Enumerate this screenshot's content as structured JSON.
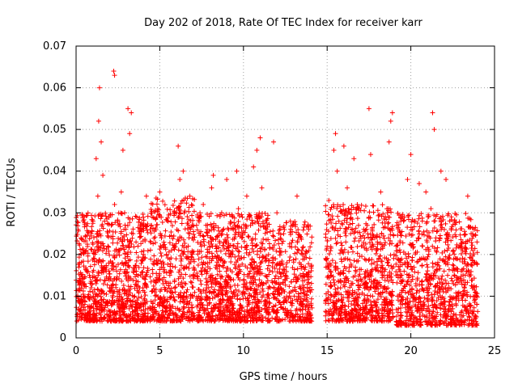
{
  "chart_data": {
    "type": "scatter",
    "title": "Day 202 of 2018, Rate Of TEC Index for receiver karr",
    "xlabel": "GPS time / hours",
    "ylabel": "ROTI / TECUs",
    "xlim": [
      0,
      25
    ],
    "ylim": [
      0,
      0.07
    ],
    "xticks": [
      0,
      5,
      10,
      15,
      20,
      25
    ],
    "xtick_labels": [
      "0",
      "5",
      "10",
      "15",
      "20",
      "25"
    ],
    "yticks": [
      0,
      0.01,
      0.02,
      0.03,
      0.04,
      0.05,
      0.06,
      0.07
    ],
    "ytick_labels": [
      "0",
      "0.01",
      "0.02",
      "0.03",
      "0.04",
      "0.05",
      "0.06",
      "0.07"
    ],
    "grid": true,
    "marker": "+",
    "color": "#ff0000",
    "series": [
      {
        "name": "ROTI",
        "points": [
          [
            0.1,
            0.01
          ],
          [
            0.2,
            0.018
          ],
          [
            0.3,
            0.024
          ],
          [
            0.4,
            0.008
          ],
          [
            0.5,
            0.013
          ],
          [
            0.6,
            0.021
          ],
          [
            0.7,
            0.006
          ],
          [
            0.8,
            0.015
          ],
          [
            0.9,
            0.025
          ],
          [
            1.0,
            0.011
          ],
          [
            1.1,
            0.019
          ],
          [
            1.2,
            0.043
          ],
          [
            1.3,
            0.034
          ],
          [
            1.35,
            0.052
          ],
          [
            1.4,
            0.06
          ],
          [
            1.5,
            0.047
          ],
          [
            1.6,
            0.039
          ],
          [
            1.7,
            0.028
          ],
          [
            1.8,
            0.016
          ],
          [
            1.9,
            0.022
          ],
          [
            2.0,
            0.012
          ],
          [
            2.1,
            0.027
          ],
          [
            2.2,
            0.018
          ],
          [
            2.3,
            0.032
          ],
          [
            2.25,
            0.064
          ],
          [
            2.3,
            0.063
          ],
          [
            2.4,
            0.014
          ],
          [
            2.5,
            0.009
          ],
          [
            2.6,
            0.021
          ],
          [
            2.7,
            0.035
          ],
          [
            2.8,
            0.045
          ],
          [
            2.9,
            0.03
          ],
          [
            3.0,
            0.018
          ],
          [
            3.1,
            0.055
          ],
          [
            3.2,
            0.049
          ],
          [
            3.3,
            0.054
          ],
          [
            3.4,
            0.025
          ],
          [
            3.5,
            0.01
          ],
          [
            3.6,
            0.016
          ],
          [
            3.7,
            0.022
          ],
          [
            3.8,
            0.012
          ],
          [
            3.9,
            0.008
          ],
          [
            4.0,
            0.019
          ],
          [
            4.2,
            0.034
          ],
          [
            4.5,
            0.027
          ],
          [
            4.7,
            0.011
          ],
          [
            4.8,
            0.018
          ],
          [
            5.0,
            0.035
          ],
          [
            5.1,
            0.024
          ],
          [
            5.2,
            0.013
          ],
          [
            5.3,
            0.009
          ],
          [
            5.4,
            0.02
          ],
          [
            5.5,
            0.028
          ],
          [
            5.6,
            0.015
          ],
          [
            5.7,
            0.021
          ],
          [
            5.8,
            0.006
          ],
          [
            5.9,
            0.012
          ],
          [
            6.0,
            0.03
          ],
          [
            6.1,
            0.046
          ],
          [
            6.2,
            0.038
          ],
          [
            6.3,
            0.024
          ],
          [
            6.4,
            0.04
          ],
          [
            6.5,
            0.017
          ],
          [
            6.6,
            0.011
          ],
          [
            6.7,
            0.022
          ],
          [
            6.8,
            0.034
          ],
          [
            7.0,
            0.015
          ],
          [
            7.2,
            0.027
          ],
          [
            7.4,
            0.009
          ],
          [
            7.5,
            0.018
          ],
          [
            7.6,
            0.032
          ],
          [
            7.8,
            0.012
          ],
          [
            8.0,
            0.022
          ],
          [
            8.1,
            0.036
          ],
          [
            8.2,
            0.039
          ],
          [
            8.3,
            0.014
          ],
          [
            8.5,
            0.01
          ],
          [
            8.6,
            0.025
          ],
          [
            8.7,
            0.03
          ],
          [
            8.8,
            0.017
          ],
          [
            9.0,
            0.038
          ],
          [
            9.1,
            0.021
          ],
          [
            9.2,
            0.012
          ],
          [
            9.3,
            0.008
          ],
          [
            9.5,
            0.026
          ],
          [
            9.6,
            0.04
          ],
          [
            9.7,
            0.031
          ],
          [
            9.8,
            0.019
          ],
          [
            9.9,
            0.024
          ],
          [
            10.0,
            0.011
          ],
          [
            10.2,
            0.034
          ],
          [
            10.4,
            0.016
          ],
          [
            10.6,
            0.041
          ],
          [
            10.7,
            0.022
          ],
          [
            10.8,
            0.045
          ],
          [
            10.9,
            0.029
          ],
          [
            11.0,
            0.048
          ],
          [
            11.1,
            0.036
          ],
          [
            11.2,
            0.013
          ],
          [
            11.3,
            0.009
          ],
          [
            11.5,
            0.02
          ],
          [
            11.8,
            0.047
          ],
          [
            12.0,
            0.03
          ],
          [
            12.2,
            0.012
          ],
          [
            12.4,
            0.025
          ],
          [
            12.6,
            0.018
          ],
          [
            12.8,
            0.028
          ],
          [
            13.0,
            0.014
          ],
          [
            13.2,
            0.034
          ],
          [
            13.3,
            0.021
          ],
          [
            13.5,
            0.008
          ],
          [
            13.7,
            0.017
          ],
          [
            13.9,
            0.026
          ],
          [
            14.0,
            0.011
          ],
          [
            15.0,
            0.022
          ],
          [
            15.1,
            0.033
          ],
          [
            15.2,
            0.016
          ],
          [
            15.4,
            0.045
          ],
          [
            15.5,
            0.049
          ],
          [
            15.6,
            0.04
          ],
          [
            15.7,
            0.028
          ],
          [
            15.8,
            0.012
          ],
          [
            16.0,
            0.046
          ],
          [
            16.1,
            0.019
          ],
          [
            16.2,
            0.036
          ],
          [
            16.4,
            0.025
          ],
          [
            16.6,
            0.043
          ],
          [
            16.8,
            0.032
          ],
          [
            17.0,
            0.014
          ],
          [
            17.2,
            0.009
          ],
          [
            17.4,
            0.027
          ],
          [
            17.5,
            0.055
          ],
          [
            17.6,
            0.044
          ],
          [
            17.8,
            0.018
          ],
          [
            18.0,
            0.023
          ],
          [
            18.2,
            0.035
          ],
          [
            18.4,
            0.012
          ],
          [
            18.6,
            0.03
          ],
          [
            18.7,
            0.047
          ],
          [
            18.8,
            0.052
          ],
          [
            18.9,
            0.054
          ],
          [
            19.0,
            0.02
          ],
          [
            19.2,
            0.01
          ],
          [
            19.4,
            0.028
          ],
          [
            19.6,
            0.016
          ],
          [
            19.8,
            0.038
          ],
          [
            20.0,
            0.044
          ],
          [
            20.1,
            0.026
          ],
          [
            20.3,
            0.013
          ],
          [
            20.5,
            0.037
          ],
          [
            20.7,
            0.022
          ],
          [
            20.9,
            0.035
          ],
          [
            21.0,
            0.017
          ],
          [
            21.2,
            0.031
          ],
          [
            21.3,
            0.054
          ],
          [
            21.4,
            0.05
          ],
          [
            21.5,
            0.024
          ],
          [
            21.6,
            0.011
          ],
          [
            21.8,
            0.04
          ],
          [
            22.0,
            0.026
          ],
          [
            22.1,
            0.038
          ],
          [
            22.3,
            0.019
          ],
          [
            22.5,
            0.007
          ],
          [
            22.6,
            0.028
          ],
          [
            22.8,
            0.016
          ],
          [
            23.0,
            0.022
          ],
          [
            23.2,
            0.012
          ],
          [
            23.4,
            0.034
          ],
          [
            23.6,
            0.025
          ],
          [
            23.8,
            0.009
          ],
          [
            23.9,
            0.018
          ]
        ]
      }
    ],
    "density_model": {
      "note": "dense bulk of points between the visible traces (data-space bands)",
      "bands": [
        {
          "x": [
            0.0,
            4.3
          ],
          "y": [
            0.004,
            0.03
          ],
          "count": 900
        },
        {
          "x": [
            4.4,
            7.1
          ],
          "y": [
            0.004,
            0.034
          ],
          "count": 500
        },
        {
          "x": [
            7.2,
            11.6
          ],
          "y": [
            0.004,
            0.03
          ],
          "count": 900
        },
        {
          "x": [
            11.7,
            14.1
          ],
          "y": [
            0.004,
            0.028
          ],
          "count": 400
        },
        {
          "x": [
            14.9,
            19.0
          ],
          "y": [
            0.004,
            0.032
          ],
          "count": 800
        },
        {
          "x": [
            19.1,
            24.0
          ],
          "y": [
            0.003,
            0.03
          ],
          "count": 900
        }
      ]
    }
  }
}
